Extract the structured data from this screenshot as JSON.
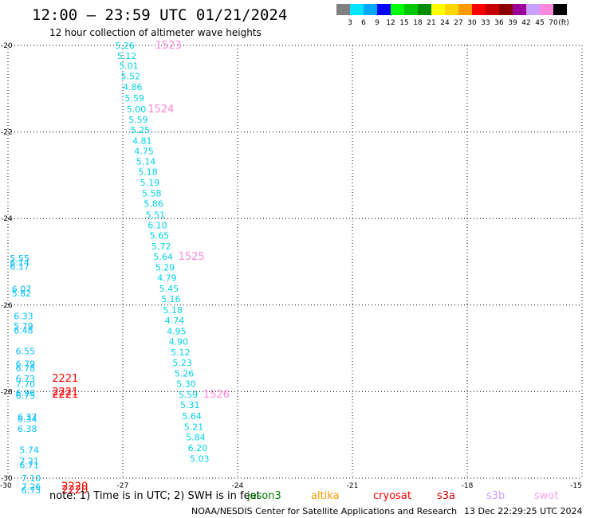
{
  "chart_data": {
    "type": "scatter",
    "title": "12:00 – 23:59 UTC 01/21/2024",
    "subtitle": "12 hour collection of altimeter wave heights",
    "xlim": [
      -30,
      -15
    ],
    "ylim": [
      -30,
      -20
    ],
    "x_ticks": [
      "-30",
      "-27",
      "-24",
      "-21",
      "-18",
      "-15"
    ],
    "y_ticks": [
      "-20",
      "-22",
      "-24",
      "-26",
      "-28",
      "-30"
    ],
    "grid": true,
    "colorbar": {
      "labels": [
        "3",
        "6",
        "9",
        "12",
        "15",
        "18",
        "21",
        "24",
        "27",
        "30",
        "33",
        "36",
        "39",
        "42",
        "45",
        "70"
      ],
      "unit": "(ft)",
      "colors": [
        "#7f7f7f",
        "#00e5ff",
        "#00a8ff",
        "#0000ff",
        "#00ff00",
        "#00c800",
        "#008c00",
        "#ffff00",
        "#ffd700",
        "#ff9900",
        "#ff0000",
        "#c80000",
        "#8b0000",
        "#9b009b",
        "#c8a0ff",
        "#ff88dd",
        "#000000"
      ]
    },
    "track_main": {
      "color": "#00d2e6",
      "points": [
        {
          "x": -27.2,
          "y": -20.0,
          "v": "5.26"
        },
        {
          "x": -27.15,
          "y": -20.24,
          "v": "5.12"
        },
        {
          "x": -27.1,
          "y": -20.47,
          "v": "5.01"
        },
        {
          "x": -27.05,
          "y": -20.71,
          "v": "5.52"
        },
        {
          "x": -27.0,
          "y": -20.96,
          "v": "4.86"
        },
        {
          "x": -26.95,
          "y": -21.22,
          "v": "5.59"
        },
        {
          "x": -26.9,
          "y": -21.47,
          "v": "5.00"
        },
        {
          "x": -26.85,
          "y": -21.71,
          "v": "5.59"
        },
        {
          "x": -26.8,
          "y": -21.95,
          "v": "5.25"
        },
        {
          "x": -26.75,
          "y": -22.2,
          "v": "4.81"
        },
        {
          "x": -26.7,
          "y": -22.44,
          "v": "4.75"
        },
        {
          "x": -26.65,
          "y": -22.68,
          "v": "5.14"
        },
        {
          "x": -26.6,
          "y": -22.92,
          "v": "5.18"
        },
        {
          "x": -26.55,
          "y": -23.17,
          "v": "5.19"
        },
        {
          "x": -26.5,
          "y": -23.42,
          "v": "5.58"
        },
        {
          "x": -26.45,
          "y": -23.66,
          "v": "5.86"
        },
        {
          "x": -26.4,
          "y": -23.91,
          "v": "5.51"
        },
        {
          "x": -26.35,
          "y": -24.15,
          "v": "6.10"
        },
        {
          "x": -26.3,
          "y": -24.39,
          "v": "5.65"
        },
        {
          "x": -26.25,
          "y": -24.64,
          "v": "5.72"
        },
        {
          "x": -26.2,
          "y": -24.88,
          "v": "5.64"
        },
        {
          "x": -26.15,
          "y": -25.13,
          "v": "5.29"
        },
        {
          "x": -26.1,
          "y": -25.37,
          "v": "4.79"
        },
        {
          "x": -26.05,
          "y": -25.62,
          "v": "5.45"
        },
        {
          "x": -26.0,
          "y": -25.86,
          "v": "5.16"
        },
        {
          "x": -25.95,
          "y": -26.11,
          "v": "5.18"
        },
        {
          "x": -25.9,
          "y": -26.35,
          "v": "4.74"
        },
        {
          "x": -25.85,
          "y": -26.6,
          "v": "4.95"
        },
        {
          "x": -25.8,
          "y": -26.84,
          "v": "4.90"
        },
        {
          "x": -25.75,
          "y": -27.09,
          "v": "5.12"
        },
        {
          "x": -25.7,
          "y": -27.33,
          "v": "5.23"
        },
        {
          "x": -25.65,
          "y": -27.58,
          "v": "5.26"
        },
        {
          "x": -25.6,
          "y": -27.82,
          "v": "5.30"
        },
        {
          "x": -25.55,
          "y": -28.07,
          "v": "5.59"
        },
        {
          "x": -25.5,
          "y": -28.31,
          "v": "5.31"
        },
        {
          "x": -25.45,
          "y": -28.56,
          "v": "5.64"
        },
        {
          "x": -25.4,
          "y": -28.81,
          "v": "5.21"
        },
        {
          "x": -25.35,
          "y": -29.05,
          "v": "5.84"
        },
        {
          "x": -25.3,
          "y": -29.3,
          "v": "6.20"
        },
        {
          "x": -25.25,
          "y": -29.55,
          "v": "5.03"
        }
      ],
      "pass_labels": [
        {
          "x": -26.15,
          "y": -20.0,
          "text": "1523"
        },
        {
          "x": -26.35,
          "y": -21.47,
          "text": "1524"
        },
        {
          "x": -25.55,
          "y": -24.88,
          "text": "1525"
        },
        {
          "x": -24.9,
          "y": -28.07,
          "text": "1526"
        }
      ],
      "pass_color": "#ff88dd"
    },
    "track_west": {
      "color": "#00bfff",
      "points": [
        {
          "x": -29.95,
          "y": -24.92,
          "v": "5.55"
        },
        {
          "x": -29.95,
          "y": -25.02,
          "v": "6.14"
        },
        {
          "x": -29.95,
          "y": -25.11,
          "v": "6.17"
        },
        {
          "x": -29.9,
          "y": -25.63,
          "v": "6.07"
        },
        {
          "x": -29.9,
          "y": -25.73,
          "v": "5.82"
        },
        {
          "x": -29.85,
          "y": -26.25,
          "v": "6.33"
        },
        {
          "x": -29.85,
          "y": -26.48,
          "v": "5.79"
        },
        {
          "x": -29.85,
          "y": -26.58,
          "v": "6.48"
        },
        {
          "x": -29.8,
          "y": -27.06,
          "v": "6.55"
        },
        {
          "x": -29.8,
          "y": -27.36,
          "v": "6.79"
        },
        {
          "x": -29.8,
          "y": -27.46,
          "v": "6.78"
        },
        {
          "x": -29.8,
          "y": -27.7,
          "v": "6.73"
        },
        {
          "x": -29.8,
          "y": -27.83,
          "v": "7.70"
        },
        {
          "x": -29.8,
          "y": -28.03,
          "v": "6.96"
        },
        {
          "x": -29.8,
          "y": -28.09,
          "v": "6.75"
        },
        {
          "x": -29.75,
          "y": -28.58,
          "v": "6.37"
        },
        {
          "x": -29.75,
          "y": -28.63,
          "v": "6.34"
        },
        {
          "x": -29.75,
          "y": -28.86,
          "v": "6.38"
        },
        {
          "x": -29.7,
          "y": -29.35,
          "v": "5.74"
        },
        {
          "x": -29.7,
          "y": -29.6,
          "v": "7.21"
        },
        {
          "x": -29.7,
          "y": -29.7,
          "v": "6.71"
        },
        {
          "x": -29.65,
          "y": -30.0,
          "v": "7.10"
        },
        {
          "x": -29.65,
          "y": -30.19,
          "v": "7.26"
        },
        {
          "x": -29.65,
          "y": -30.28,
          "v": "6.73"
        }
      ],
      "pass_labels": [
        {
          "x": -28.85,
          "y": -27.7,
          "text": "2221"
        },
        {
          "x": -28.85,
          "y": -28.01,
          "text": "2221"
        },
        {
          "x": -28.85,
          "y": -28.07,
          "text": "2221"
        },
        {
          "x": -28.6,
          "y": -30.19,
          "text": "2220"
        },
        {
          "x": -28.6,
          "y": -30.28,
          "text": "2220"
        }
      ],
      "pass_color": "#ff0000"
    }
  },
  "note": "note:  1) Time is in UTC; 2) SWH is in feet",
  "satellites": [
    {
      "name": "jason3",
      "color": "#008000"
    },
    {
      "name": "altika",
      "color": "#ff9900"
    },
    {
      "name": "cryosat",
      "color": "#ff0000"
    },
    {
      "name": "s3a",
      "color": "#c80000"
    },
    {
      "name": "s3b",
      "color": "#c8a0ff"
    },
    {
      "name": "swot",
      "color": "#ffa0e6"
    }
  ],
  "footer_left": "NOAA/NESDIS Center for Satellite Applications and Research",
  "footer_right": "13 Dec 22:29:25 UTC 2024"
}
